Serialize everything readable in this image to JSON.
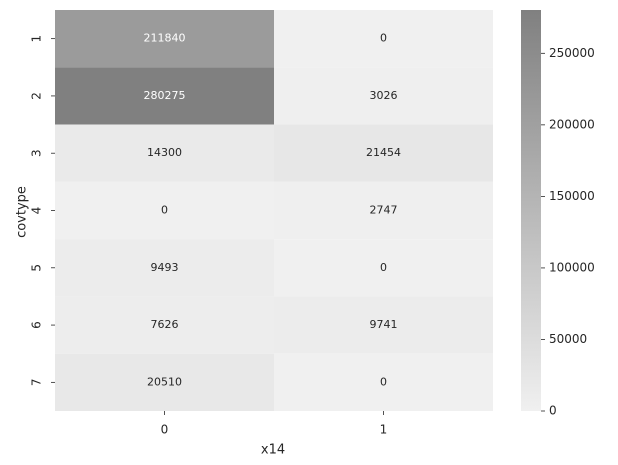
{
  "chart_data": {
    "type": "heatmap",
    "title": "",
    "xlabel": "x14",
    "ylabel": "covtype",
    "x_categories": [
      "0",
      "1"
    ],
    "y_categories": [
      "1",
      "2",
      "3",
      "4",
      "5",
      "6",
      "7"
    ],
    "values": [
      [
        211840,
        0
      ],
      [
        280275,
        3026
      ],
      [
        14300,
        21454
      ],
      [
        0,
        2747
      ],
      [
        9493,
        0
      ],
      [
        7626,
        9741
      ],
      [
        20510,
        0
      ]
    ],
    "colorbar": {
      "range": [
        0,
        280275
      ],
      "ticks": [
        0,
        50000,
        100000,
        150000,
        200000,
        250000
      ],
      "tick_labels": [
        "0",
        "50000",
        "100000",
        "150000",
        "200000",
        "250000"
      ],
      "color_low": "#f0f0f0",
      "color_high": "#808080"
    }
  }
}
